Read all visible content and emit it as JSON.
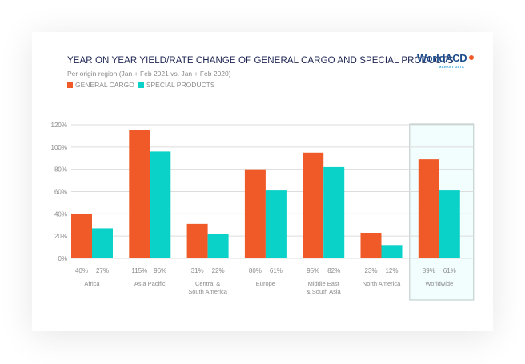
{
  "header": {
    "title": "YEAR ON YEAR YIELD/RATE CHANGE OF GENERAL CARGO AND SPECIAL PRODUCTS",
    "subtitle": "Per origin region (Jan + Feb 2021 vs. Jan + Feb 2020)",
    "logo_text": "WorldACD",
    "logo_sub": "MARKET DATA"
  },
  "colors": {
    "general_cargo": "#f05a28",
    "special_products": "#0ad2c8",
    "title": "#1d2452",
    "grid": "#dcdcdc",
    "highlight_fill": "#f2fdfd",
    "highlight_border": "#b9c8c8"
  },
  "chart_data": {
    "type": "bar",
    "title": "YEAR ON YEAR YIELD/RATE CHANGE OF GENERAL CARGO AND SPECIAL PRODUCTS",
    "subtitle": "Per origin region (Jan + Feb 2021 vs. Jan + Feb 2020)",
    "xlabel": "",
    "ylabel": "",
    "ylim": [
      0,
      120
    ],
    "yticks": [
      0,
      20,
      40,
      60,
      80,
      100,
      120
    ],
    "ytick_labels": [
      "0%",
      "20%",
      "40%",
      "60%",
      "80%",
      "100%",
      "120%"
    ],
    "grid": true,
    "legend_position": "top-left",
    "categories": [
      [
        "Africa"
      ],
      [
        "Asia Pacific"
      ],
      [
        "Central &",
        "South America"
      ],
      [
        "Europe"
      ],
      [
        "Middle East",
        "& South Asia"
      ],
      [
        "North America"
      ],
      [
        "Worldwide"
      ]
    ],
    "highlighted_category": "Worldwide",
    "series": [
      {
        "name": "GENERAL CARGO",
        "values": [
          40,
          115,
          31,
          80,
          95,
          23,
          89
        ],
        "labels": [
          "40%",
          "115%",
          "31%",
          "80%",
          "95%",
          "23%",
          "89%"
        ]
      },
      {
        "name": "SPECIAL PRODUCTS",
        "values": [
          27,
          96,
          22,
          61,
          82,
          12,
          61
        ],
        "labels": [
          "27%",
          "96%",
          "22%",
          "61%",
          "82%",
          "12%",
          "61%"
        ]
      }
    ]
  }
}
